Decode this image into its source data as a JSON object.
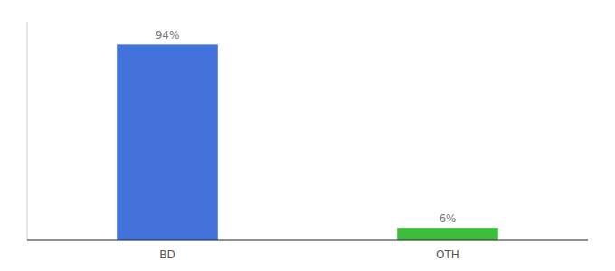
{
  "chart_data": {
    "type": "bar",
    "categories": [
      "BD",
      "OTH"
    ],
    "values": [
      94,
      6
    ],
    "value_labels": [
      "94%",
      "6%"
    ],
    "colors": [
      "#4472db",
      "#3dbd3d"
    ],
    "ylim": [
      0,
      105
    ],
    "data_labels": true,
    "tick_labels": "x",
    "grid": false
  }
}
